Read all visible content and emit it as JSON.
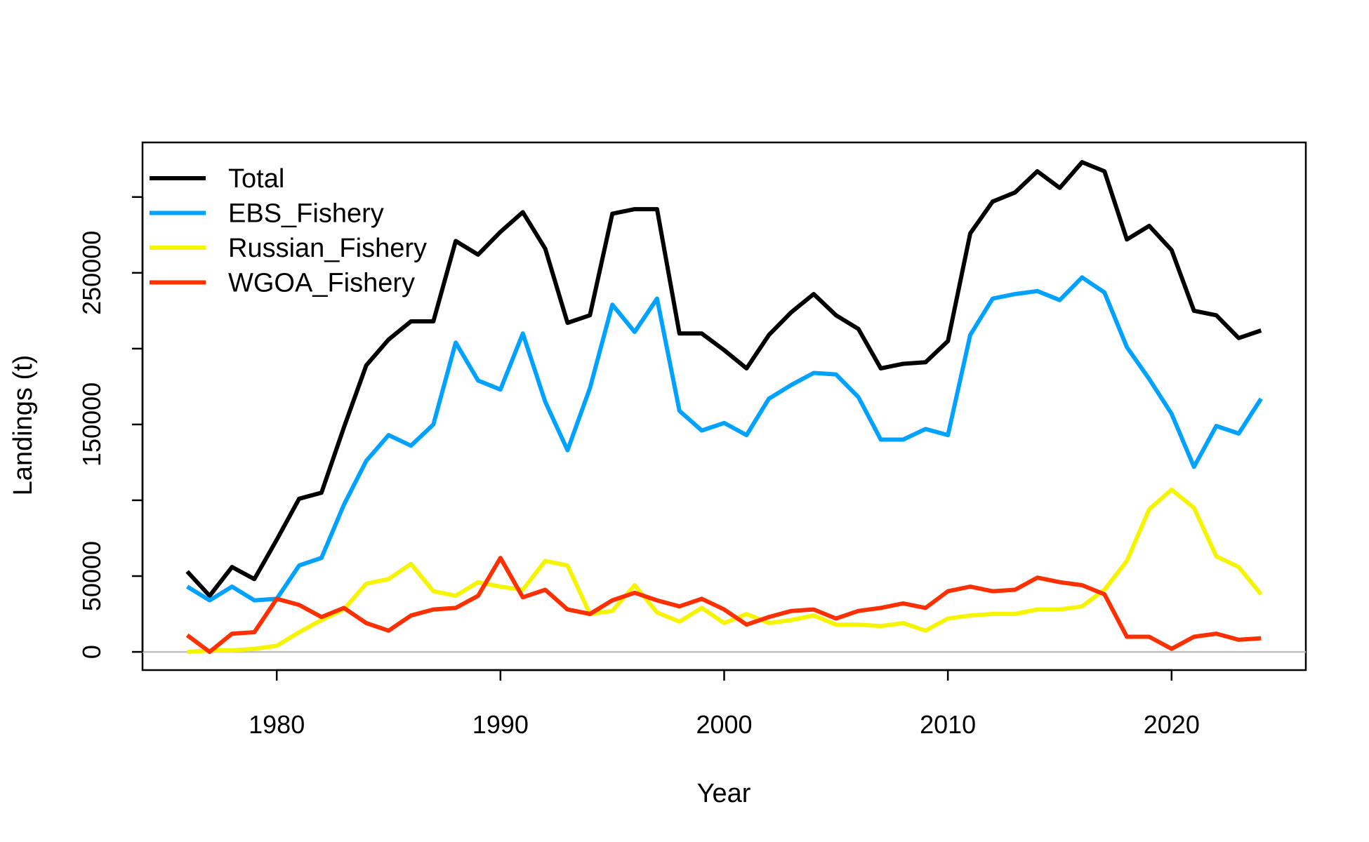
{
  "chart_data": {
    "type": "line",
    "title": "",
    "xlabel": "Year",
    "ylabel": "Landings (t)",
    "xlim": [
      1974,
      2026
    ],
    "ylim": [
      -12000,
      336000
    ],
    "xticks": [
      1980,
      1990,
      2000,
      2010,
      2020
    ],
    "xtick_labels": [
      "1980",
      "1990",
      "2000",
      "2010",
      "2020"
    ],
    "yticks": [
      0,
      50000,
      100000,
      150000,
      200000,
      250000,
      300000
    ],
    "ytick_labels": [
      "0",
      "50000",
      "",
      "150000",
      "",
      "250000",
      ""
    ],
    "zero_line_color": "#bebebe",
    "grid": false,
    "legend_position": "top-left",
    "x": [
      1976,
      1977,
      1978,
      1979,
      1980,
      1981,
      1982,
      1983,
      1984,
      1985,
      1986,
      1987,
      1988,
      1989,
      1990,
      1991,
      1992,
      1993,
      1994,
      1995,
      1996,
      1997,
      1998,
      1999,
      2000,
      2001,
      2002,
      2003,
      2004,
      2005,
      2006,
      2007,
      2008,
      2009,
      2010,
      2011,
      2012,
      2013,
      2014,
      2015,
      2016,
      2017,
      2018,
      2019,
      2020,
      2021,
      2022,
      2023,
      2024
    ],
    "series": [
      {
        "name": "Total",
        "color": "#000000",
        "values": [
          53000,
          37000,
          56000,
          48000,
          74000,
          101000,
          105000,
          148000,
          189000,
          206000,
          218000,
          218000,
          271000,
          262000,
          277000,
          290000,
          266000,
          217000,
          222000,
          289000,
          292000,
          292000,
          210000,
          210000,
          199000,
          187000,
          209000,
          224000,
          236000,
          222000,
          213000,
          187000,
          190000,
          191000,
          205000,
          276000,
          297000,
          303000,
          317000,
          306000,
          323000,
          317000,
          272000,
          281000,
          265000,
          225000,
          222000,
          207000,
          212000
        ]
      },
      {
        "name": "EBS_Fishery",
        "color": "#00a2ff",
        "values": [
          43000,
          34000,
          43000,
          34000,
          35000,
          57000,
          62000,
          97000,
          126000,
          143000,
          136000,
          150000,
          204000,
          179000,
          173000,
          210000,
          165000,
          133000,
          174000,
          229000,
          211000,
          233000,
          159000,
          146000,
          151000,
          143000,
          167000,
          176000,
          184000,
          183000,
          168000,
          140000,
          140000,
          147000,
          143000,
          209000,
          233000,
          236000,
          238000,
          232000,
          247000,
          237000,
          201000,
          180000,
          157000,
          122000,
          149000,
          144000,
          167000
        ]
      },
      {
        "name": "Russian_Fishery",
        "color": "#f5f500",
        "values": [
          0,
          1000,
          1000,
          2000,
          4000,
          13000,
          21000,
          28000,
          45000,
          48000,
          58000,
          40000,
          37000,
          46000,
          43000,
          41000,
          60000,
          57000,
          25000,
          27000,
          44000,
          26000,
          20000,
          29000,
          19000,
          25000,
          19000,
          21000,
          24000,
          18000,
          18000,
          17000,
          19000,
          14000,
          22000,
          24000,
          25000,
          25000,
          28000,
          28000,
          30000,
          41000,
          60000,
          94000,
          107000,
          95000,
          63000,
          56000,
          38000
        ]
      },
      {
        "name": "WGOA_Fishery",
        "color": "#ff3000",
        "values": [
          11000,
          0,
          12000,
          13000,
          35000,
          31000,
          23000,
          29000,
          19000,
          14000,
          24000,
          28000,
          29000,
          37000,
          62000,
          36000,
          41000,
          28000,
          25000,
          34000,
          39000,
          34000,
          30000,
          35000,
          28000,
          18000,
          23000,
          27000,
          28000,
          22000,
          27000,
          29000,
          32000,
          29000,
          40000,
          43000,
          40000,
          41000,
          49000,
          46000,
          44000,
          38000,
          10000,
          10000,
          2000,
          10000,
          12000,
          8000,
          9000
        ]
      }
    ]
  }
}
